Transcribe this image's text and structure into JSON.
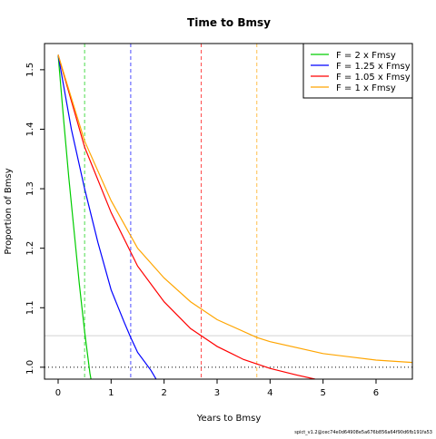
{
  "chart_data": {
    "type": "line",
    "title": "Time to Bmsy",
    "x_label": "Years to Bmsy",
    "y_label": "Proportion of Bmsy",
    "footnote": "spict_v1.2@cec74e0d64908e5a676b856a64f90d6fb191fa53",
    "xlim": [
      -0.257,
      6.686
    ],
    "ylim": [
      0.98,
      1.544
    ],
    "xticks": [
      0,
      1,
      2,
      3,
      4,
      5,
      6
    ],
    "yticks": [
      {
        "value": 1.0,
        "label": "1.0"
      },
      1.1,
      1.2,
      1.3,
      1.4,
      1.5
    ],
    "legend": "top-right",
    "series": [
      {
        "name": "F = 2 x Fmsy",
        "color": "#00cd00",
        "x": [
          0,
          0.1,
          0.2,
          0.3,
          0.4,
          0.5,
          0.6,
          0.62
        ],
        "values": [
          1.525,
          1.42,
          1.32,
          1.23,
          1.14,
          1.06,
          0.99,
          0.98
        ]
      },
      {
        "name": "F = 1.25 x Fmsy",
        "color": "#0000ff",
        "x": [
          0,
          0.25,
          0.5,
          0.75,
          1,
          1.25,
          1.37,
          1.5,
          1.75,
          1.85
        ],
        "values": [
          1.525,
          1.4,
          1.3,
          1.21,
          1.13,
          1.075,
          1.05,
          1.025,
          0.995,
          0.98
        ]
      },
      {
        "name": "F = 1.05 x Fmsy",
        "color": "#ff0000",
        "x": [
          0,
          0.5,
          1,
          1.5,
          2,
          2.5,
          2.7,
          3,
          3.5,
          4,
          4.5,
          4.85
        ],
        "values": [
          1.525,
          1.37,
          1.26,
          1.17,
          1.11,
          1.065,
          1.053,
          1.035,
          1.013,
          0.998,
          0.987,
          0.98
        ]
      },
      {
        "name": "F = 1 x Fmsy",
        "color": "#ffa500",
        "x": [
          0,
          0.5,
          1,
          1.5,
          2,
          2.5,
          3,
          3.75,
          4,
          5,
          6,
          6.686
        ],
        "values": [
          1.525,
          1.38,
          1.28,
          1.2,
          1.15,
          1.11,
          1.08,
          1.05,
          1.043,
          1.023,
          1.012,
          1.008
        ]
      }
    ],
    "vlines": [
      {
        "x": 0.5,
        "color": "#00cd00"
      },
      {
        "x": 1.37,
        "color": "#0000ff"
      },
      {
        "x": 2.7,
        "color": "#ff0000"
      },
      {
        "x": 3.75,
        "color": "#ffa500"
      }
    ],
    "hlines": [
      {
        "y": 1.0,
        "color": "#000000",
        "style": "dotted"
      },
      {
        "y": 1.053,
        "color": "#d3d3d3",
        "style": "solid"
      }
    ]
  }
}
